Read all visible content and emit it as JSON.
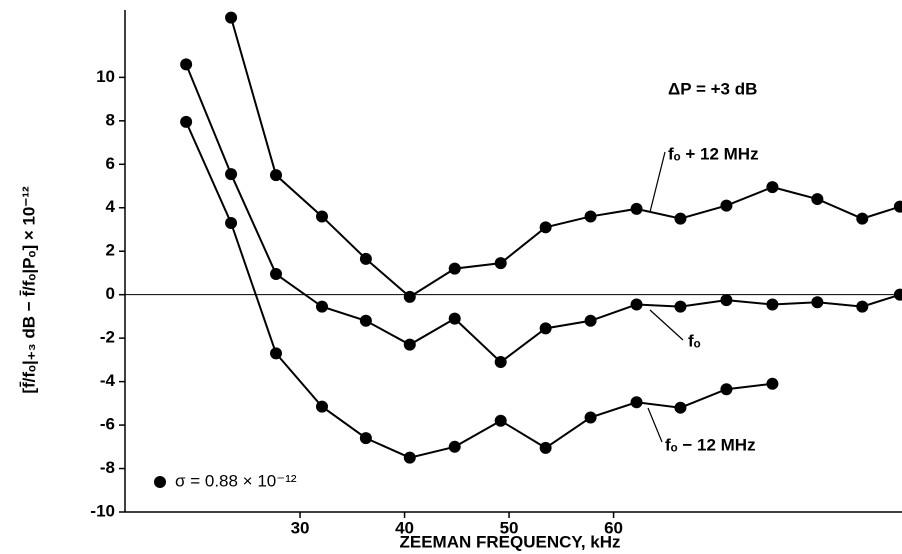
{
  "chart_data": {
    "type": "line",
    "y_label": "[f̄/fₒ|₊₃ dB − f̄/fₒ|Pₒ] × 10⁻¹²",
    "x_label": "ZEEMAN FREQUENCY, kHz",
    "annotations": [
      "ΔP  =  +3 dB",
      "σ  =  0.88  ×  10⁻¹²"
    ],
    "x": [
      19.1,
      23.4,
      27.7,
      32.1,
      36.3,
      40.5,
      44.8,
      49.2,
      53.5,
      57.8,
      62.2,
      66.4,
      70.8,
      75.2,
      79.5,
      83.8,
      87.4
    ],
    "series": [
      {
        "name": "fₒ + 12 MHz",
        "color": "#000000",
        "values": [
          null,
          12.75,
          5.5,
          3.6,
          1.65,
          -0.1,
          1.2,
          1.45,
          3.1,
          3.6,
          3.95,
          3.5,
          4.1,
          4.95,
          4.4,
          3.5,
          4.05
        ]
      },
      {
        "name": "fₒ",
        "color": "#000000",
        "values": [
          10.6,
          5.55,
          0.95,
          -0.55,
          -1.2,
          -2.3,
          -1.1,
          -3.1,
          -1.55,
          -1.2,
          -0.45,
          -0.55,
          -0.25,
          -0.45,
          -0.35,
          -0.55,
          0
        ]
      },
      {
        "name": "fₒ − 12 MHz",
        "color": "#000000",
        "values": [
          7.95,
          3.3,
          -2.7,
          -5.15,
          -6.6,
          -7.5,
          -7.0,
          -5.8,
          -7.05,
          -5.65,
          -4.95,
          -5.2,
          -4.35,
          -4.1,
          null,
          null,
          null
        ]
      }
    ],
    "xlim": [
      13.25,
      87.6
    ],
    "ylim": [
      -10,
      13.1
    ],
    "xticks": [
      30,
      40,
      50,
      60
    ],
    "yticks": [
      -10,
      -8,
      -6,
      -4,
      -2,
      0,
      2,
      4,
      6,
      8,
      10
    ],
    "zero_line": true
  }
}
